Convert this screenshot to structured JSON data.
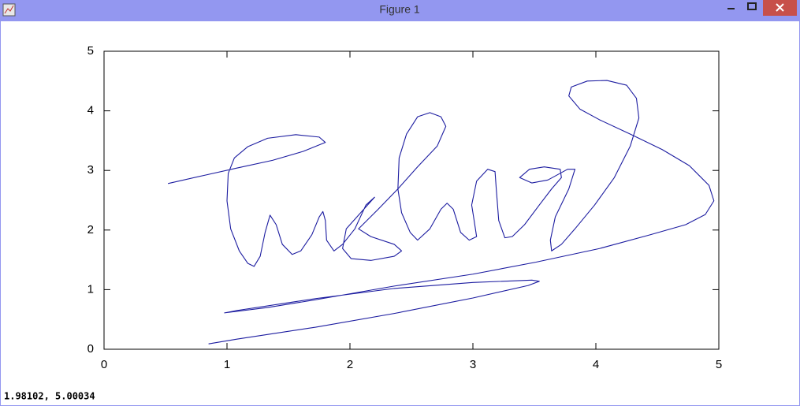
{
  "window": {
    "title": "Figure 1",
    "status": "1.98102, 5.00034"
  },
  "chart_data": {
    "type": "line",
    "color": "#1c1ca0",
    "xlim": [
      0,
      5
    ],
    "ylim": [
      0,
      5
    ],
    "xticks": [
      0,
      1,
      2,
      3,
      4,
      5
    ],
    "yticks": [
      0,
      1,
      2,
      3,
      4,
      5
    ],
    "x": [
      0.52,
      0.82,
      1.08,
      1.37,
      1.62,
      1.8,
      1.75,
      1.56,
      1.33,
      1.17,
      1.06,
      1.01,
      1.0,
      1.03,
      1.1,
      1.17,
      1.22,
      1.27,
      1.31,
      1.35,
      1.4,
      1.45,
      1.53,
      1.6,
      1.69,
      1.75,
      1.78,
      1.8,
      1.81,
      1.87,
      1.94,
      2.04,
      2.13,
      2.2,
      1.97,
      1.94,
      2.01,
      2.17,
      2.36,
      2.42,
      2.36,
      2.17,
      2.07,
      2.23,
      2.39,
      2.55,
      2.71,
      2.78,
      2.74,
      2.65,
      2.55,
      2.46,
      2.4,
      2.39,
      2.42,
      2.49,
      2.55,
      2.65,
      2.74,
      2.79,
      2.84,
      2.9,
      2.97,
      3.03,
      3.01,
      2.99,
      3.03,
      3.12,
      3.18,
      3.19,
      3.21,
      3.26,
      3.32,
      3.42,
      3.54,
      3.64,
      3.72,
      3.71,
      3.58,
      3.46,
      3.38,
      3.48,
      3.61,
      3.77,
      3.83,
      3.78,
      3.67,
      3.63,
      3.64,
      3.72,
      3.83,
      3.99,
      4.15,
      4.28,
      4.35,
      4.33,
      4.25,
      4.09,
      3.93,
      3.8,
      3.78,
      3.87,
      4.03,
      4.28,
      4.54,
      4.76,
      4.92,
      4.96,
      4.89,
      4.73,
      4.44,
      4.03,
      3.51,
      3.0,
      2.36,
      1.72,
      1.33,
      0.98,
      1.08,
      1.72,
      2.36,
      3.0,
      3.48,
      3.54,
      3.45,
      3.0,
      2.36,
      1.72,
      1.08,
      0.85
    ],
    "values": [
      2.78,
      2.92,
      3.04,
      3.17,
      3.32,
      3.47,
      3.56,
      3.6,
      3.54,
      3.4,
      3.21,
      2.95,
      2.49,
      2.02,
      1.65,
      1.44,
      1.39,
      1.56,
      1.96,
      2.25,
      2.09,
      1.76,
      1.59,
      1.65,
      1.92,
      2.22,
      2.31,
      2.16,
      1.83,
      1.65,
      1.76,
      2.02,
      2.42,
      2.55,
      2.02,
      1.69,
      1.52,
      1.49,
      1.56,
      1.65,
      1.76,
      1.89,
      2.02,
      2.35,
      2.69,
      3.06,
      3.41,
      3.74,
      3.9,
      3.97,
      3.9,
      3.61,
      3.21,
      2.69,
      2.29,
      1.96,
      1.83,
      2.02,
      2.35,
      2.45,
      2.35,
      1.96,
      1.83,
      1.89,
      2.16,
      2.42,
      2.82,
      3.02,
      2.98,
      2.69,
      2.16,
      1.87,
      1.89,
      2.09,
      2.42,
      2.69,
      2.88,
      3.02,
      3.06,
      3.02,
      2.88,
      2.79,
      2.84,
      3.02,
      3.02,
      2.69,
      2.22,
      1.83,
      1.65,
      1.76,
      2.02,
      2.42,
      2.88,
      3.41,
      3.88,
      4.21,
      4.43,
      4.51,
      4.5,
      4.4,
      4.25,
      4.03,
      3.85,
      3.61,
      3.35,
      3.08,
      2.75,
      2.49,
      2.26,
      2.09,
      1.92,
      1.69,
      1.46,
      1.26,
      1.06,
      0.83,
      0.7,
      0.61,
      0.65,
      0.85,
      1.02,
      1.12,
      1.16,
      1.14,
      1.07,
      0.86,
      0.6,
      0.37,
      0.17,
      0.09
    ]
  }
}
